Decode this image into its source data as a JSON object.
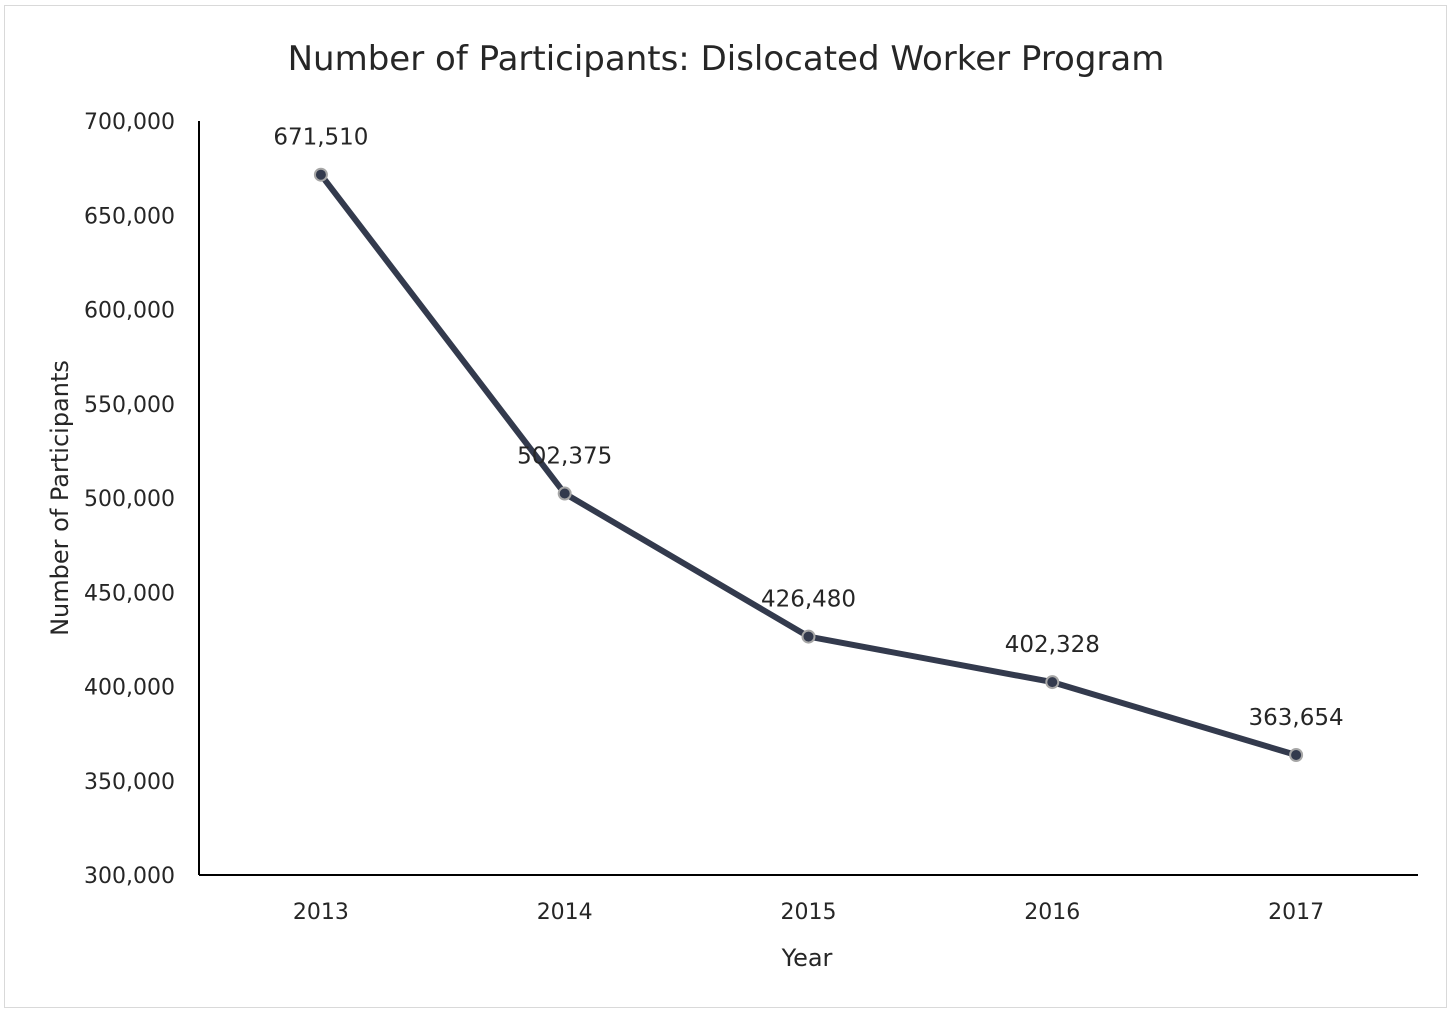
{
  "chart_data": {
    "type": "line",
    "title": "Number of Participants: Dislocated Worker Program",
    "xlabel": "Year",
    "ylabel": "Number of Participants",
    "categories": [
      "2013",
      "2014",
      "2015",
      "2016",
      "2017"
    ],
    "series": [
      {
        "values": [
          671510,
          502375,
          426480,
          402328,
          363654
        ]
      }
    ],
    "data_labels": [
      "671,510",
      "502,375",
      "426,480",
      "402,328",
      "363,654"
    ],
    "y_ticks": [
      300000,
      350000,
      400000,
      450000,
      500000,
      550000,
      600000,
      650000,
      700000
    ],
    "y_tick_labels": [
      "300,000",
      "350,000",
      "400,000",
      "450,000",
      "500,000",
      "550,000",
      "600,000",
      "650,000",
      "700,000"
    ],
    "ylim": [
      300000,
      700000
    ],
    "grid": false,
    "legend": "none",
    "colors": {
      "line": "#333a4d",
      "marker_fill": "#333a4d",
      "marker_stroke": "#a6a6a6",
      "axis": "#000000",
      "text": "#262626"
    }
  }
}
